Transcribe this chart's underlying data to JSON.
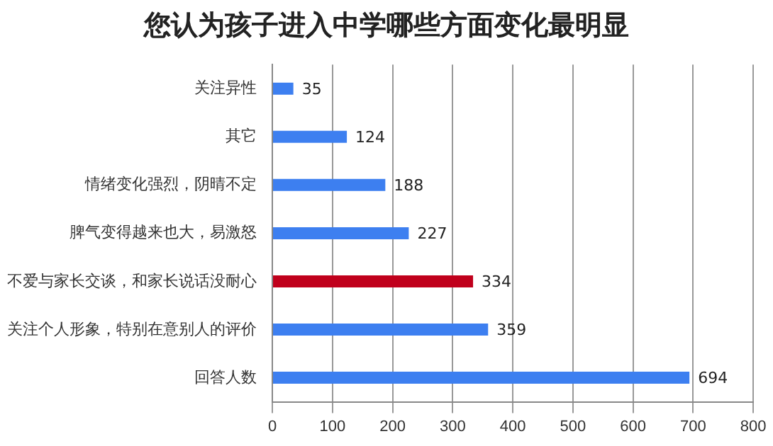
{
  "chart_data": {
    "type": "bar",
    "orientation": "horizontal",
    "title": "您认为孩子进入中学哪些方面变化最明显",
    "categories": [
      "关注异性",
      "其它",
      "情绪变化强烈，阴晴不定",
      "脾气变得越来也大，易激怒",
      "不爱与家长交谈，和家长说话没耐心",
      "关注个人形象，特别在意别人的评价",
      "回答人数"
    ],
    "values": [
      35,
      124,
      188,
      227,
      334,
      359,
      694
    ],
    "colors": [
      "#3d7ff0",
      "#3d7ff0",
      "#3d7ff0",
      "#3d7ff0",
      "#c0001c",
      "#3d7ff0",
      "#3d7ff0"
    ],
    "xlim": [
      0,
      800
    ],
    "xticks": [
      0,
      100,
      200,
      300,
      400,
      500,
      600,
      700,
      800
    ],
    "grid": "x",
    "data_labels": true,
    "legend": false
  }
}
